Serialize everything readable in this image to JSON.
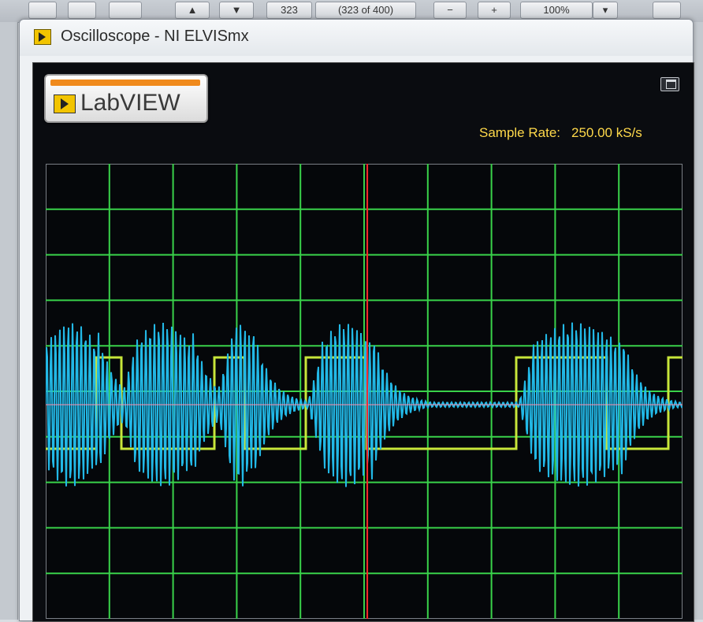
{
  "background_toolbar": {
    "page_field": "323",
    "page_of": "(323 of 400)",
    "zoom": "100%"
  },
  "window": {
    "title": "Oscilloscope - NI ELVISmx",
    "logo_text": "LabVIEW"
  },
  "scope": {
    "sample_rate_label": "Sample Rate:",
    "sample_rate_value": "250.00 kS/s",
    "grid": {
      "x_divisions": 10,
      "y_divisions": 10
    },
    "cursor_position_fraction": 0.505
  },
  "colors": {
    "panel": "#0a0c10",
    "grid": "#39d24a",
    "channel_1": "#22b8e6",
    "channel_2": "#c8e63a",
    "cursor": "#ff2a2a",
    "text": "#ffd94a"
  }
}
